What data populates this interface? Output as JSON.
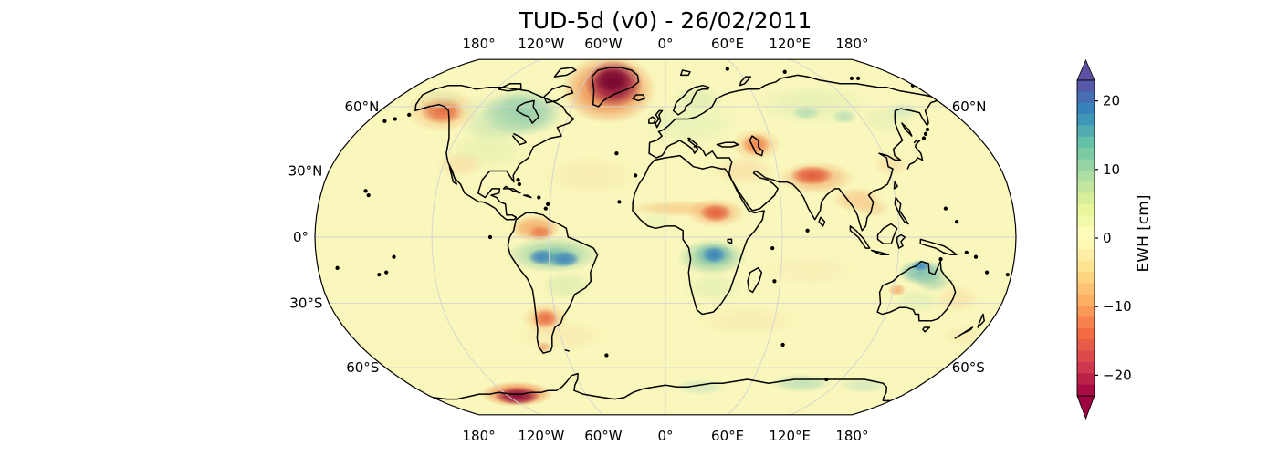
{
  "title": "TUD-5d (v0) - 26/02/2011",
  "colors": {
    "background": "#ffffff",
    "base_fill": "#f9f7bb",
    "coastline": "#000000",
    "gridline": "#d2d2d2",
    "map_edge": "#000000",
    "text": "#000000"
  },
  "map": {
    "projection": "Robinson",
    "top_lon_ticks": [
      "180°",
      "120°W",
      "60°W",
      "0°",
      "60°E",
      "120°E",
      "180°"
    ],
    "bottom_lon_ticks": [
      "180°",
      "120°W",
      "60°W",
      "0°",
      "60°E",
      "120°E",
      "180°"
    ],
    "left_lat_ticks": [
      "60°N",
      "30°N",
      "0°",
      "30°S",
      "60°S"
    ],
    "right_lat_ticks": [
      "60°N",
      "60°S"
    ]
  },
  "colorbar": {
    "label": "EWH [cm]",
    "ticks": [
      "20",
      "10",
      "0",
      "−10",
      "−20"
    ],
    "tick_values": [
      20,
      10,
      0,
      -10,
      -20
    ],
    "vmin": -23,
    "vmax": 23,
    "n_steps": 28,
    "extend": "both",
    "colormap": "Spectral",
    "stops": [
      "#9e0142",
      "#d53e4f",
      "#f46d43",
      "#fdae61",
      "#fee08b",
      "#ffffbf",
      "#e6f598",
      "#abdda4",
      "#66c2a5",
      "#3288bd",
      "#5e4fa2"
    ]
  },
  "chart_data": {
    "type": "heatmap",
    "title": "TUD-5d (v0) - 26/02/2011",
    "product": "TUD-5d (v0)",
    "date": "26/02/2011",
    "variable": "EWH",
    "units": "cm",
    "projection": "Robinson",
    "colorbar_range": [
      -23,
      23
    ],
    "colorbar_ticks": [
      20,
      10,
      0,
      -10,
      -20
    ],
    "grid": {
      "parallels_deg": [
        60,
        30,
        0,
        -30,
        -60
      ],
      "meridians_deg": [
        -180,
        -120,
        -60,
        0,
        60,
        120,
        180
      ]
    },
    "legend_position": "right",
    "anomalies": [
      {
        "region": "Greenland",
        "lon": -40,
        "lat": 71,
        "ewh_cm": -25
      },
      {
        "region": "Gulf of Alaska",
        "lon": -141,
        "lat": 58,
        "ewh_cm": -14
      },
      {
        "region": "Hudson Bay / central Canada",
        "lon": -92,
        "lat": 56,
        "ewh_cm": 8
      },
      {
        "region": "US Great Plains",
        "lon": -99,
        "lat": 40,
        "ewh_cm": 4
      },
      {
        "region": "Amazon Basin",
        "lon": -58,
        "lat": -9,
        "ewh_cm": 15
      },
      {
        "region": "Northern South America (Venezuela)",
        "lon": -66,
        "lat": 3,
        "ewh_cm": -9
      },
      {
        "region": "Central Argentina",
        "lon": -66,
        "lat": -37,
        "ewh_cm": -12
      },
      {
        "region": "Congo Basin",
        "lon": 25,
        "lat": -8,
        "ewh_cm": 15
      },
      {
        "region": "Sahel / Sudan",
        "lon": 26,
        "lat": 11,
        "ewh_cm": -12
      },
      {
        "region": "Europe",
        "lon": 15,
        "lat": 52,
        "ewh_cm": 4
      },
      {
        "region": "Caspian Sea region",
        "lon": 51,
        "lat": 42,
        "ewh_cm": -12
      },
      {
        "region": "Northern India / Himalaya",
        "lon": 78,
        "lat": 28,
        "ewh_cm": -14
      },
      {
        "region": "Siberia",
        "lon": 95,
        "lat": 60,
        "ewh_cm": 5
      },
      {
        "region": "Southeast Asia",
        "lon": 100,
        "lat": 17,
        "ewh_cm": -6
      },
      {
        "region": "Northern Australia",
        "lon": 133,
        "lat": -15,
        "ewh_cm": 12
      },
      {
        "region": "Southern Africa",
        "lon": 25,
        "lat": -23,
        "ewh_cm": 5
      },
      {
        "region": "West Antarctica (Amundsen Sea)",
        "lon": -113,
        "lat": -75,
        "ewh_cm": -25
      },
      {
        "region": "East Antarctica coast",
        "lon": 95,
        "lat": -68,
        "ewh_cm": 6
      }
    ]
  }
}
